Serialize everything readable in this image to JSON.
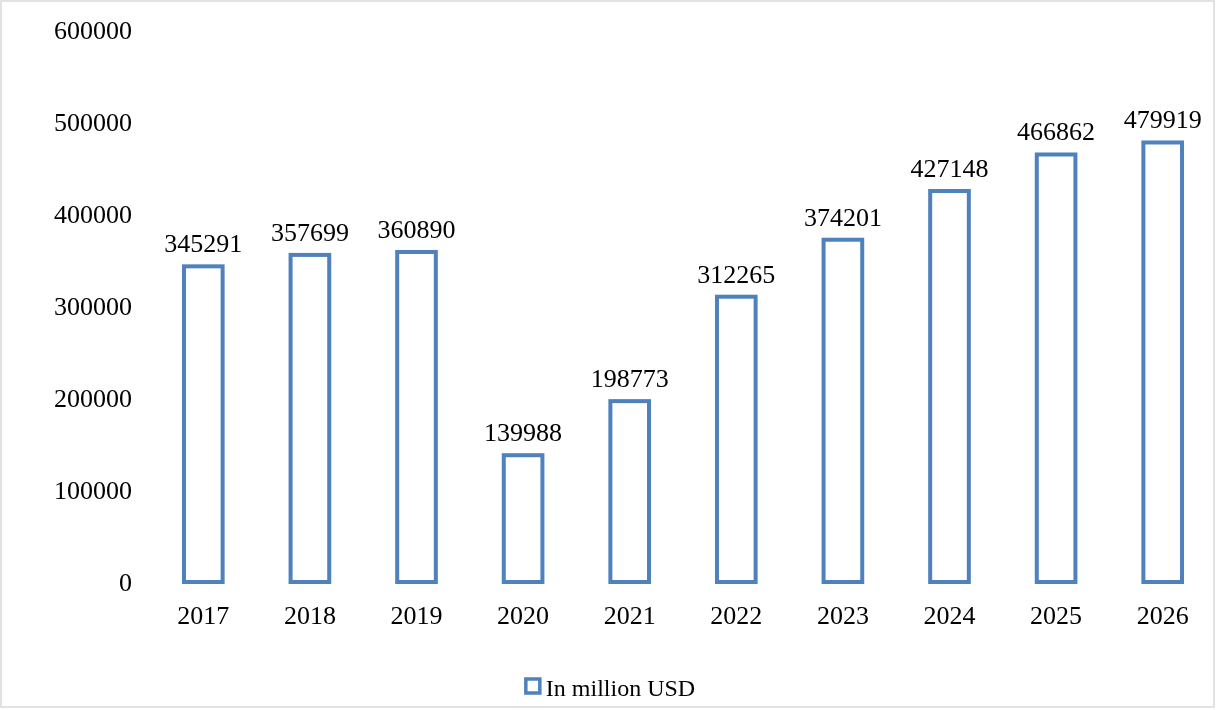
{
  "chart_data": {
    "type": "bar",
    "categories": [
      "2017",
      "2018",
      "2019",
      "2020",
      "2021",
      "2022",
      "2023",
      "2024",
      "2025",
      "2026"
    ],
    "series": [
      {
        "name": "In million USD",
        "color": "#4f81bd",
        "values": [
          345291,
          357699,
          360890,
          139988,
          198773,
          312265,
          374201,
          427148,
          466862,
          479919
        ]
      }
    ],
    "ylim": [
      0,
      600000
    ],
    "yticks": [
      0,
      100000,
      200000,
      300000,
      400000,
      500000,
      600000
    ],
    "data_labels": true,
    "legend": "bottom"
  }
}
